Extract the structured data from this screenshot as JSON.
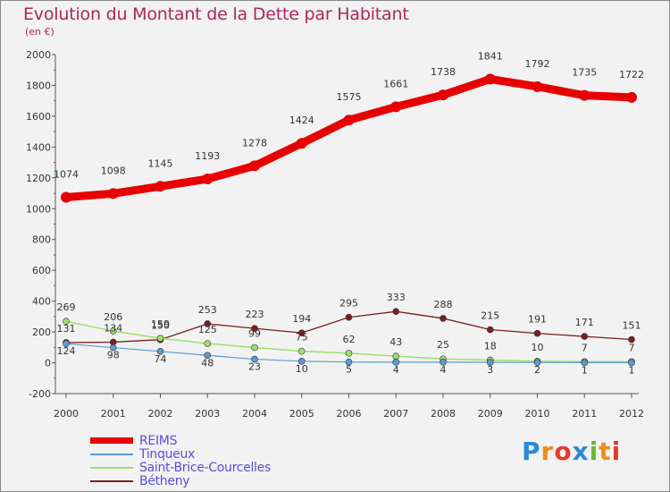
{
  "header": {
    "title": "Evolution du Montant de la Dette par Habitant",
    "unit": "(en €)"
  },
  "brand": {
    "text": "Proxiti",
    "colors": [
      "#2a8ad6",
      "#f08c1a",
      "#e23b2e",
      "#2a8ad6",
      "#6ab82a",
      "#f08c1a",
      "#e23b2e"
    ]
  },
  "chart_data": {
    "type": "line",
    "title": "Evolution du Montant de la Dette par Habitant",
    "ylabel": "(en €)",
    "xlabel": "",
    "x": [
      "2000",
      "2001",
      "2002",
      "2003",
      "2004",
      "2005",
      "2006",
      "2007",
      "2008",
      "2009",
      "2010",
      "2011",
      "2012"
    ],
    "ylim": [
      -200,
      2000
    ],
    "yticks": [
      "-200",
      "0",
      "200",
      "400",
      "600",
      "800",
      "1000",
      "1200",
      "1400",
      "1600",
      "1800",
      "2000"
    ],
    "grid": false,
    "legend_position": "bottom-left",
    "series": [
      {
        "name": "REIMS",
        "color": "#e80000",
        "values": [
          1074,
          1098,
          1145,
          1193,
          1278,
          1424,
          1575,
          1661,
          1738,
          1841,
          1792,
          1735,
          1722
        ]
      },
      {
        "name": "Tinqueux",
        "color": "#5b9bd5",
        "values": [
          124,
          98,
          74,
          48,
          23,
          10,
          5,
          4,
          4,
          3,
          2,
          1,
          1
        ]
      },
      {
        "name": "Saint-Brice-Courcelles",
        "color": "#9be06a",
        "values": [
          269,
          206,
          159,
          125,
          99,
          75,
          62,
          43,
          25,
          18,
          10,
          7,
          7
        ]
      },
      {
        "name": "Bétheny",
        "color": "#7a1f1f",
        "values": [
          131,
          134,
          150,
          253,
          223,
          194,
          295,
          333,
          288,
          215,
          191,
          171,
          151
        ]
      }
    ]
  }
}
